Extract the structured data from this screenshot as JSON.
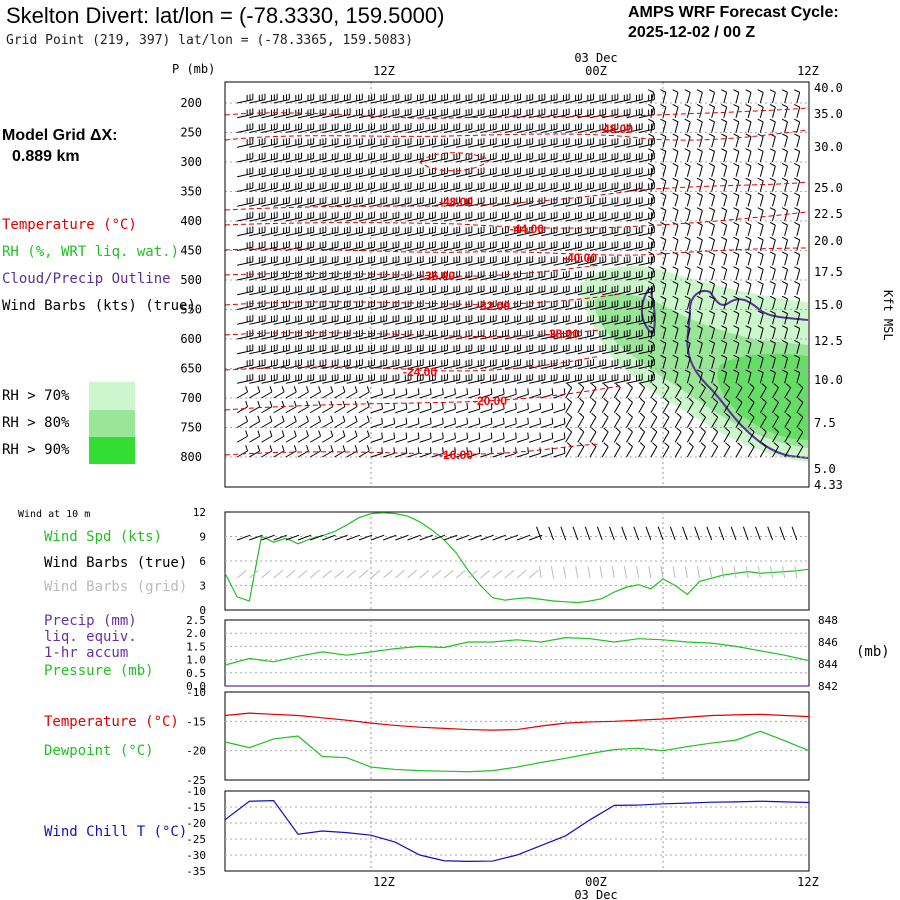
{
  "header": {
    "title": "Skelton Divert:  lat/lon = (-78.3330, 159.5000)",
    "subtitle": "Grid Point (219, 397) lat/lon = (-78.3365, 159.5083)",
    "cycle_line1": "AMPS WRF Forecast Cycle:",
    "cycle_line2": "2025-12-02 / 00  Z"
  },
  "left_panel": {
    "model_grid_label": "Model Grid ΔX:",
    "model_grid_value": "0.889 km",
    "temperature_label": "Temperature (°C)",
    "rh_label": "RH (%, WRT liq. wat.)",
    "cloud_label": "Cloud/Precip Outline",
    "wind_label": "Wind Barbs (kts) (true)",
    "rh70": "RH > 70%",
    "rh80": "RH > 80%",
    "rh90": "RH > 90%"
  },
  "colors": {
    "temperature": "#e00000",
    "rh70": "#ccf7cc",
    "rh80": "#99e699",
    "rh90": "#33dd33",
    "cloud": "#5b2f96",
    "wind_speed": "#22c022",
    "dewpoint": "#22c022",
    "pressure": "#22c022",
    "precip": "#6a2fa0",
    "wind_chill": "#1010c0",
    "grid_barbs": "#bbbbbb",
    "barb": "#000000"
  },
  "chart_data": [
    {
      "id": "upper_air",
      "type": "heatmap",
      "y_axis_title": "P (mb)",
      "right_axis_title": "Kft MSL",
      "pressure_ticks": [
        "200",
        "250",
        "300",
        "350",
        "400",
        "450",
        "500",
        "550",
        "600",
        "650",
        "700",
        "750",
        "800"
      ],
      "height_ticks": [
        "40.0",
        "35.0",
        "30.0",
        "25.0",
        "22.5",
        "20.0",
        "17.5",
        "15.0",
        "12.5",
        "10.0",
        "7.5",
        "5.0",
        "4.33"
      ],
      "time_ticks_top": [
        "12Z",
        "00Z",
        "12Z"
      ],
      "date_label": "03 Dec",
      "temperature_contour_labels": [
        "-48.00",
        "-48.00",
        "-44.00",
        "-40.00",
        "-36.00",
        "-32.00",
        "-28.00",
        "-24.00",
        "-20.00",
        "-16.00"
      ]
    },
    {
      "id": "surface_wind",
      "type": "line",
      "label": "Wind at 10 m",
      "series_labels": [
        "Wind Spd (kts)",
        "Wind Barbs (true)",
        "Wind Barbs (grid)"
      ],
      "y_ticks": [
        "12",
        "9",
        "6",
        "3",
        "0"
      ],
      "ylim": [
        0,
        12
      ],
      "x": [
        0,
        0.5,
        1,
        1.5,
        2,
        2.5,
        3,
        3.5,
        4,
        4.5,
        5,
        5.5,
        6,
        6.5,
        7,
        7.5,
        8,
        8.5,
        9,
        9.5,
        10,
        10.5,
        11,
        11.5,
        12,
        12.5,
        13,
        13.5,
        14,
        14.5,
        15,
        15.5,
        16,
        16.5,
        17,
        17.5,
        18,
        18.5,
        19,
        19.5,
        20,
        20.5,
        21,
        21.5,
        22,
        22.5,
        23,
        23.5,
        24
      ],
      "series": [
        {
          "name": "Wind Spd (kts)",
          "values": [
            4.5,
            1.6,
            1.1,
            9.0,
            8.3,
            8.8,
            8.1,
            8.7,
            9.1,
            9.6,
            10.4,
            11.3,
            11.8,
            11.9,
            11.8,
            11.5,
            10.8,
            9.8,
            8.6,
            7.0,
            4.8,
            3.0,
            1.5,
            1.2,
            1.4,
            1.5,
            1.3,
            1.1,
            1.0,
            0.9,
            1.1,
            1.4,
            2.2,
            2.8,
            3.1,
            2.6,
            3.8,
            3.0,
            1.9,
            3.5,
            3.9,
            4.3,
            4.5,
            4.7,
            4.5,
            4.6,
            4.7,
            4.8,
            5.0
          ]
        }
      ]
    },
    {
      "id": "pressure_precip",
      "type": "line",
      "series_labels": [
        "Precip (mm)",
        "liq. equiv.",
        "1-hr accum",
        "Pressure (mb)"
      ],
      "left_ticks": [
        "2.5",
        "2.0",
        "1.5",
        "1.0",
        "0.5",
        "0.0"
      ],
      "right_ticks": [
        "848",
        "846",
        "844",
        "842"
      ],
      "right_axis_title": "(mb)",
      "ylim_precip": [
        0,
        2.5
      ],
      "ylim_pressure": [
        842,
        848
      ],
      "x": [
        0,
        1,
        2,
        3,
        4,
        5,
        6,
        7,
        8,
        9,
        10,
        11,
        12,
        13,
        14,
        15,
        16,
        17,
        18,
        19,
        20,
        21,
        22,
        23,
        24
      ],
      "series": [
        {
          "name": "Pressure (mb)",
          "values": [
            843.9,
            844.5,
            844.2,
            844.7,
            845.1,
            844.8,
            845.1,
            845.4,
            845.6,
            845.5,
            846.0,
            846.0,
            846.2,
            846.0,
            846.4,
            846.3,
            846.0,
            846.3,
            846.2,
            846.0,
            845.9,
            845.6,
            845.2,
            844.8,
            844.3
          ]
        },
        {
          "name": "Precip (mm)",
          "values": [
            0,
            0,
            0,
            0,
            0,
            0,
            0,
            0,
            0,
            0,
            0,
            0,
            0,
            0,
            0,
            0,
            0,
            0,
            0,
            0,
            0,
            0,
            0,
            0,
            0
          ]
        }
      ]
    },
    {
      "id": "temp_dew",
      "type": "line",
      "series_labels": [
        "Temperature (°C)",
        "Dewpoint (°C)"
      ],
      "y_ticks": [
        "-10",
        "-15",
        "-20",
        "-25"
      ],
      "ylim": [
        -25,
        -10
      ],
      "x": [
        0,
        1,
        2,
        3,
        4,
        5,
        6,
        7,
        8,
        9,
        10,
        11,
        12,
        13,
        14,
        15,
        16,
        17,
        18,
        19,
        20,
        21,
        22,
        23,
        24
      ],
      "series": [
        {
          "name": "Temperature (°C)",
          "values": [
            -14.0,
            -13.6,
            -13.8,
            -14.0,
            -14.4,
            -14.8,
            -15.3,
            -15.7,
            -16.0,
            -16.2,
            -16.4,
            -16.5,
            -16.4,
            -15.8,
            -15.3,
            -15.1,
            -15.0,
            -14.8,
            -14.6,
            -14.3,
            -14.0,
            -13.9,
            -13.8,
            -14.0,
            -14.2
          ]
        },
        {
          "name": "Dewpoint (°C)",
          "values": [
            -18.5,
            -19.5,
            -18.0,
            -17.5,
            -21.0,
            -21.2,
            -22.8,
            -23.2,
            -23.4,
            -23.5,
            -23.6,
            -23.4,
            -22.8,
            -22.0,
            -21.3,
            -20.5,
            -19.8,
            -19.6,
            -20.0,
            -19.3,
            -18.7,
            -18.2,
            -16.7,
            -18.3,
            -20.0
          ]
        }
      ]
    },
    {
      "id": "wind_chill",
      "type": "line",
      "series_labels": [
        "Wind Chill T (°C)"
      ],
      "y_ticks": [
        "-10",
        "-15",
        "-20",
        "-25",
        "-30",
        "-35"
      ],
      "ylim": [
        -35,
        -10
      ],
      "time_ticks_bottom": [
        "12Z",
        "00Z",
        "12Z"
      ],
      "date_label": "03 Dec",
      "x": [
        0,
        1,
        2,
        3,
        4,
        5,
        6,
        7,
        8,
        9,
        10,
        11,
        12,
        13,
        14,
        15,
        16,
        17,
        18,
        19,
        20,
        21,
        22,
        23,
        24
      ],
      "series": [
        {
          "name": "Wind Chill T (°C)",
          "values": [
            -19.0,
            -13.2,
            -13.0,
            -23.5,
            -22.5,
            -23.0,
            -23.8,
            -26.0,
            -30.0,
            -31.8,
            -32.0,
            -31.9,
            -30.0,
            -27.0,
            -24.0,
            -19.0,
            -14.5,
            -14.4,
            -14.0,
            -13.8,
            -13.5,
            -13.4,
            -13.2,
            -13.4,
            -13.6
          ]
        }
      ]
    }
  ]
}
